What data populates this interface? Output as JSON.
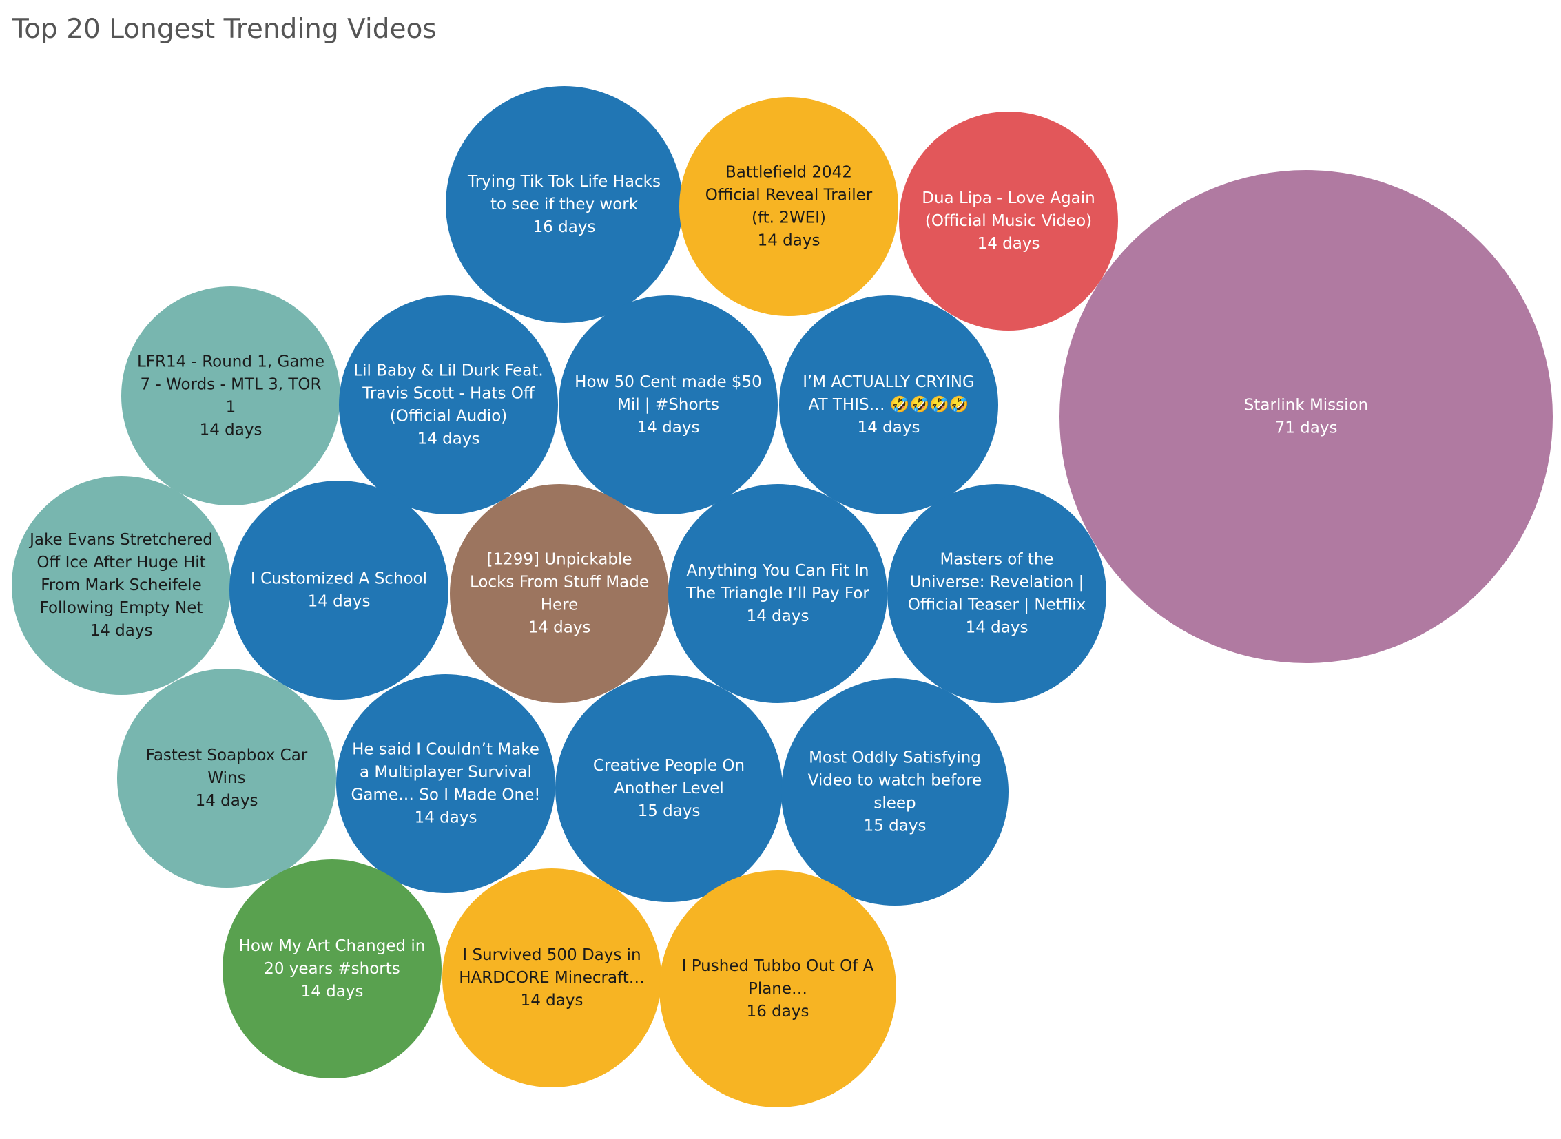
{
  "title": "Top 20 Longest Trending Videos",
  "chart_data": {
    "type": "bubble",
    "title": "Top 20 Longest Trending Videos",
    "size_measure": "days trending",
    "unit": "days",
    "palette": {
      "blue": "#2176B4",
      "yellow": "#F7B423",
      "red": "#E2575A",
      "purple": "#B07AA1",
      "teal": "#78B6AF",
      "brown": "#9C755F",
      "green": "#59A14F"
    },
    "bubbles": [
      {
        "label": "Trying Tik Tok Life Hacks to see if they work",
        "value": 16,
        "value_label": "16 days",
        "color": "#2176B4"
      },
      {
        "label": "Battlefield 2042 Official Reveal Trailer (ft. 2WEI)",
        "value": 14,
        "value_label": "14 days",
        "color": "#F7B423"
      },
      {
        "label": "Dua Lipa - Love Again (Official Music Video)",
        "value": 14,
        "value_label": "14 days",
        "color": "#E2575A"
      },
      {
        "label": "Starlink Mission",
        "value": 71,
        "value_label": "71 days",
        "color": "#B07AA1"
      },
      {
        "label": "LFR14 - Round 1, Game 7 - Words - MTL 3, TOR 1",
        "value": 14,
        "value_label": "14 days",
        "color": "#78B6AF"
      },
      {
        "label": "Lil Baby & Lil Durk Feat. Travis Scott - Hats Off (Official Audio)",
        "value": 14,
        "value_label": "14 days",
        "color": "#2176B4"
      },
      {
        "label": "How 50 Cent made $50 Mil | #Shorts",
        "value": 14,
        "value_label": "14 days",
        "color": "#2176B4"
      },
      {
        "label": "I’M ACTUALLY CRYING AT THIS… 🤣🤣🤣🤣",
        "value": 14,
        "value_label": "14 days",
        "color": "#2176B4"
      },
      {
        "label": "Jake Evans Stretchered Off Ice After Huge Hit From Mark Scheifele Following Empty Net",
        "value": 14,
        "value_label": "14 days",
        "color": "#78B6AF"
      },
      {
        "label": "I Customized A School",
        "value": 14,
        "value_label": "14 days",
        "color": "#2176B4"
      },
      {
        "label": "[1299] Unpickable Locks From Stuff Made Here",
        "value": 14,
        "value_label": "14 days",
        "color": "#9C755F"
      },
      {
        "label": "Anything You Can Fit In The Triangle I’ll Pay For",
        "value": 14,
        "value_label": "14 days",
        "color": "#2176B4"
      },
      {
        "label": "Masters of the Universe: Revelation | Official Teaser | Netflix",
        "value": 14,
        "value_label": "14 days",
        "color": "#2176B4"
      },
      {
        "label": "Fastest Soapbox Car Wins",
        "value": 14,
        "value_label": "14 days",
        "color": "#78B6AF"
      },
      {
        "label": "He said I Couldn’t Make a Multiplayer Survival Game… So I Made One!",
        "value": 14,
        "value_label": "14 days",
        "color": "#2176B4"
      },
      {
        "label": "Creative People On Another Level",
        "value": 15,
        "value_label": "15 days",
        "color": "#2176B4"
      },
      {
        "label": "Most Oddly Satisfying Video to watch before sleep",
        "value": 15,
        "value_label": "15 days",
        "color": "#2176B4"
      },
      {
        "label": "How My Art Changed in 20 years #shorts",
        "value": 14,
        "value_label": "14 days",
        "color": "#59A14F"
      },
      {
        "label": "I Survived 500 Days in HARDCORE Minecraft…",
        "value": 14,
        "value_label": "14 days",
        "color": "#F7B423"
      },
      {
        "label": "I Pushed Tubbo Out Of A Plane…",
        "value": 16,
        "value_label": "16 days",
        "color": "#F7B423"
      }
    ]
  }
}
